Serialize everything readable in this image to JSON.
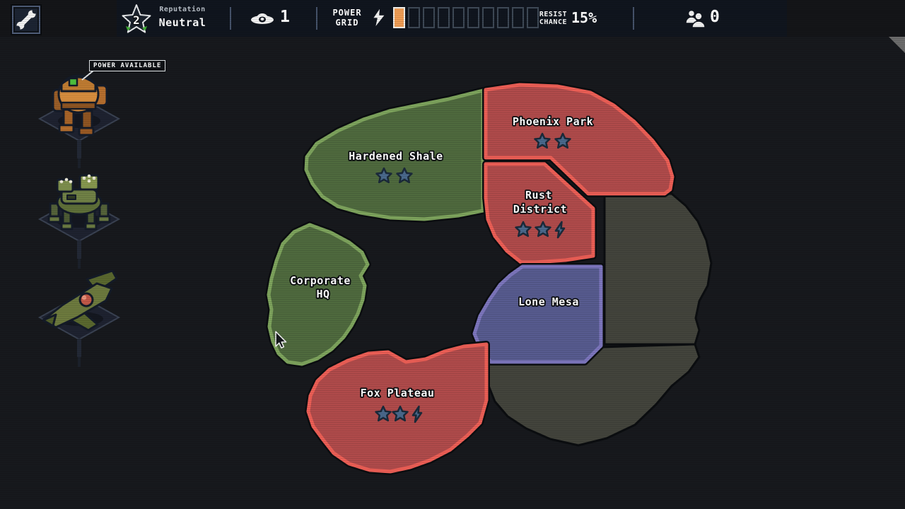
{
  "topbar": {
    "settings_icon": "wrench-icon",
    "reputation": {
      "label": "Reputation",
      "value": "Neutral",
      "level": "2",
      "icon": "star-badge-icon"
    },
    "scans": {
      "icon": "ufo-eye-icon",
      "count": "1"
    },
    "power_grid": {
      "label_line1": "POWER",
      "label_line2": "GRID",
      "icon": "lightning-icon",
      "segments_total": 10,
      "segments_filled": 1,
      "filled_color": "#ef9d55"
    },
    "resist": {
      "label_line1": "RESIST",
      "label_line2": "CHANCE",
      "value": "15%"
    },
    "population": {
      "icon": "crew-icon",
      "count": "0"
    }
  },
  "sidebar": {
    "tooltip": "POWER AVAILABLE",
    "units": [
      {
        "icon": "assault-mech-icon"
      },
      {
        "icon": "missile-crawler-icon"
      },
      {
        "icon": "fighter-jet-icon"
      }
    ]
  },
  "map": {
    "territories": [
      {
        "name": "Hardened Shale",
        "lines": [
          "Hardened Shale"
        ],
        "owner": "green",
        "stars": 2,
        "power_bonus": false
      },
      {
        "name": "Phoenix Park",
        "lines": [
          "Phoenix Park"
        ],
        "owner": "red",
        "stars": 2,
        "power_bonus": false
      },
      {
        "name": "Rust District",
        "lines": [
          "Rust",
          "District"
        ],
        "owner": "red",
        "stars": 2,
        "power_bonus": true
      },
      {
        "name": "Lone Mesa",
        "lines": [
          "Lone Mesa"
        ],
        "owner": "blue",
        "stars": 0,
        "power_bonus": false
      },
      {
        "name": "Corporate HQ",
        "lines": [
          "Corporate",
          "HQ"
        ],
        "owner": "green",
        "stars": 0,
        "power_bonus": false
      },
      {
        "name": "Fox Plateau",
        "lines": [
          "Fox Plateau"
        ],
        "owner": "red",
        "stars": 2,
        "power_bonus": true
      },
      {
        "name": "",
        "lines": [],
        "owner": "neutral",
        "stars": 0,
        "power_bonus": false
      },
      {
        "name": "",
        "lines": [],
        "owner": "neutral",
        "stars": 0,
        "power_bonus": false
      }
    ],
    "colors": {
      "green_fill": "#4f6a3e",
      "green_border": "#7ea45d",
      "red_fill": "#b04b4b",
      "red_border": "#ed5f56",
      "blue_fill": "#575b8f",
      "blue_border": "#7d76bd",
      "neutral_fill": "#43443c",
      "star": "#4a698c",
      "star_outline": "#1b2a3a"
    }
  }
}
